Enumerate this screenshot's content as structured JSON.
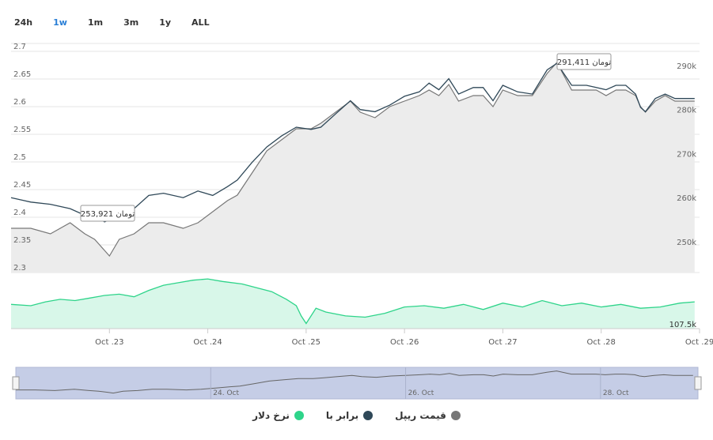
{
  "range_selector": {
    "buttons": [
      "24h",
      "1w",
      "1m",
      "3m",
      "1y",
      "ALL"
    ],
    "active": "1w"
  },
  "colors": {
    "ripple": "#777777",
    "equivalent": "#2f4858",
    "dollar": "#2ed48a",
    "navigator_fill": "#c5cde6",
    "tooltip_border": "#999999"
  },
  "legend": {
    "ripple": "قیمت ریپل",
    "equivalent": "برابر با",
    "dollar": "نرخ دلار"
  },
  "tooltips": {
    "low": "253,921 تومان",
    "high": "291,411 تومان"
  },
  "navigator_labels": [
    "24. Oct",
    "26. Oct",
    "28. Oct"
  ],
  "chart_data": {
    "type": "line",
    "title": "",
    "x_range": [
      "Oct 22",
      "Oct 29"
    ],
    "x_tick_labels": [
      "Oct .23",
      "Oct .24",
      "Oct .25",
      "Oct .26",
      "Oct .27",
      "Oct .28",
      "Oct .29"
    ],
    "left_axis": {
      "ticks": [
        "2.7",
        "2.65",
        "2.6",
        "2.55",
        "2.5",
        "2.45",
        "2.4",
        "2.35",
        "2.3"
      ],
      "ylim": [
        2.3,
        2.7
      ]
    },
    "right_axis": {
      "ticks": [
        "290k",
        "280k",
        "270k",
        "260k",
        "250k"
      ],
      "ylim": [
        243000,
        295000
      ]
    },
    "dollar_axis": {
      "label": "107.5k",
      "ylim": [
        106800,
        111200
      ]
    },
    "series": [
      {
        "name": "قیمت ریپل",
        "axis": "left",
        "x": [
          0,
          0.2,
          0.4,
          0.6,
          0.75,
          0.85,
          0.95,
          1.0,
          1.1,
          1.25,
          1.4,
          1.55,
          1.75,
          1.9,
          2.05,
          2.2,
          2.3,
          2.45,
          2.6,
          2.75,
          2.9,
          3.05,
          3.15,
          3.3,
          3.45,
          3.55,
          3.7,
          3.85,
          4.0,
          4.15,
          4.25,
          4.35,
          4.45,
          4.55,
          4.7,
          4.8,
          4.9,
          5.0,
          5.15,
          5.3,
          5.45,
          5.55,
          5.7,
          5.85,
          5.95,
          6.05,
          6.15,
          6.25,
          6.35,
          6.4,
          6.45,
          6.55,
          6.65,
          6.75,
          6.95
        ],
        "values": [
          2.38,
          2.38,
          2.37,
          2.39,
          2.37,
          2.36,
          2.34,
          2.33,
          2.36,
          2.37,
          2.39,
          2.39,
          2.38,
          2.39,
          2.41,
          2.43,
          2.44,
          2.48,
          2.52,
          2.54,
          2.56,
          2.56,
          2.57,
          2.59,
          2.61,
          2.59,
          2.58,
          2.6,
          2.61,
          2.62,
          2.63,
          2.62,
          2.64,
          2.61,
          2.62,
          2.62,
          2.6,
          2.63,
          2.62,
          2.62,
          2.66,
          2.68,
          2.63,
          2.63,
          2.63,
          2.62,
          2.63,
          2.63,
          2.62,
          2.6,
          2.59,
          2.61,
          2.62,
          2.61,
          2.61
        ]
      },
      {
        "name": "برابر با",
        "axis": "right",
        "x": [
          0,
          0.2,
          0.4,
          0.6,
          0.75,
          0.85,
          0.95,
          1.0,
          1.1,
          1.25,
          1.4,
          1.55,
          1.75,
          1.9,
          2.05,
          2.2,
          2.3,
          2.45,
          2.6,
          2.75,
          2.9,
          3.05,
          3.15,
          3.3,
          3.45,
          3.55,
          3.7,
          3.85,
          4.0,
          4.15,
          4.25,
          4.35,
          4.45,
          4.55,
          4.7,
          4.8,
          4.9,
          5.0,
          5.15,
          5.3,
          5.45,
          5.55,
          5.7,
          5.85,
          5.95,
          6.05,
          6.15,
          6.25,
          6.35,
          6.4,
          6.45,
          6.55,
          6.65,
          6.75,
          6.95
        ],
        "values": [
          260000,
          259000,
          258500,
          257500,
          256000,
          256000,
          254500,
          255000,
          256000,
          257500,
          260500,
          261000,
          260000,
          261500,
          260500,
          262500,
          264000,
          268000,
          271500,
          274000,
          276000,
          275500,
          276000,
          279000,
          282000,
          280000,
          279500,
          281000,
          283000,
          284000,
          286000,
          284500,
          287000,
          283500,
          285000,
          285000,
          282000,
          285500,
          284000,
          283500,
          289000,
          290500,
          285500,
          285500,
          285000,
          284500,
          285500,
          285500,
          283500,
          280500,
          279500,
          282500,
          283500,
          282500,
          282500
        ]
      },
      {
        "name": "نرخ دلار",
        "axis": "dollar",
        "x": [
          0,
          0.2,
          0.35,
          0.5,
          0.65,
          0.8,
          0.95,
          1.1,
          1.25,
          1.4,
          1.55,
          1.7,
          1.85,
          2.0,
          2.15,
          2.35,
          2.5,
          2.65,
          2.8,
          2.9,
          2.95,
          3.0,
          3.1,
          3.2,
          3.4,
          3.6,
          3.8,
          4.0,
          4.2,
          4.4,
          4.6,
          4.8,
          5.0,
          5.2,
          5.4,
          5.6,
          5.8,
          6.0,
          6.2,
          6.4,
          6.6,
          6.8,
          6.95
        ],
        "values": [
          108700,
          108600,
          108900,
          109100,
          109000,
          109200,
          109400,
          109500,
          109300,
          109800,
          110200,
          110400,
          110600,
          110700,
          110500,
          110300,
          110000,
          109700,
          109100,
          108600,
          107800,
          107200,
          108400,
          108100,
          107800,
          107700,
          108000,
          108500,
          108600,
          108400,
          108700,
          108300,
          108800,
          108500,
          109000,
          108600,
          108800,
          108500,
          108700,
          108400,
          108500,
          108800,
          108900
        ]
      }
    ],
    "grid": true,
    "legend_position": "bottom-center"
  }
}
